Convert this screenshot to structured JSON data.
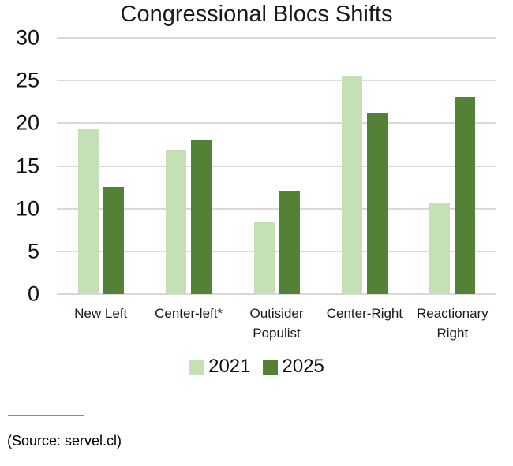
{
  "source": "(Source: servel.cl)",
  "colors": {
    "series_2021": "#c5e0b4",
    "series_2025": "#538135",
    "gridline": "#d9d9d9",
    "text": "#1a1a1a",
    "divider": "#8c8c8c"
  },
  "chart_data": {
    "type": "bar",
    "title": "Congressional Blocs Shifts",
    "categories": [
      "New Left",
      "Center-left*",
      "Outisider Populist",
      "Center-Right",
      "Reactionary Right"
    ],
    "series": [
      {
        "name": "2021",
        "color": "#c5e0b4",
        "values": [
          19.4,
          16.9,
          8.5,
          25.6,
          10.6
        ]
      },
      {
        "name": "2025",
        "color": "#538135",
        "values": [
          12.6,
          18.1,
          12.1,
          21.2,
          23.1
        ]
      }
    ],
    "xlabel": "",
    "ylabel": "",
    "ylim": [
      0,
      30
    ],
    "yticks": [
      0,
      5,
      10,
      15,
      20,
      25,
      30
    ],
    "grid": true,
    "legend_position": "bottom"
  }
}
